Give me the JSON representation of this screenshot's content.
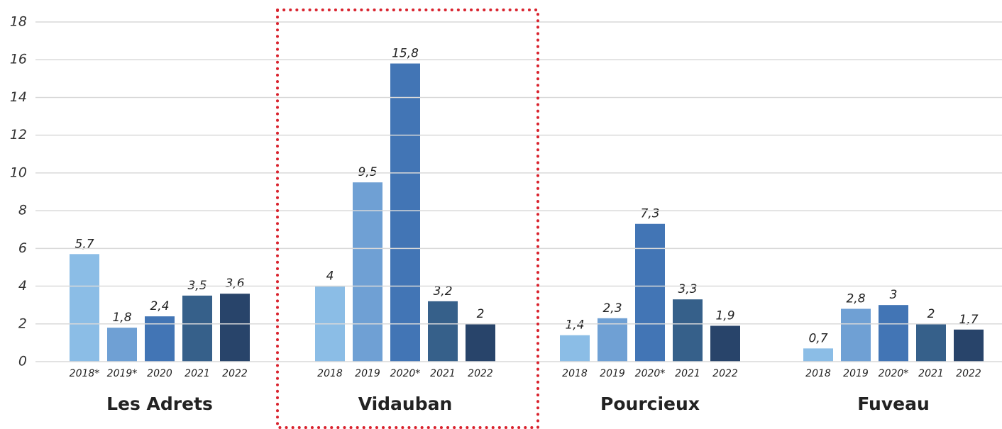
{
  "chart_data": {
    "type": "bar",
    "ylim": [
      0,
      18
    ],
    "yticks": [
      0,
      2,
      4,
      6,
      8,
      10,
      12,
      14,
      16,
      18
    ],
    "grid": true,
    "colors": [
      "#8bbde6",
      "#6fa0d4",
      "#4275b5",
      "#36608a",
      "#28446a"
    ],
    "groups": [
      {
        "name": "Les Adrets",
        "labels": [
          "2018*",
          "2019*",
          "2020",
          "2021",
          "2022"
        ],
        "values": [
          5.7,
          1.8,
          2.4,
          3.5,
          3.6
        ],
        "value_labels": [
          "5,7",
          "1,8",
          "2,4",
          "3,5",
          "3,6"
        ]
      },
      {
        "name": "Vidauban",
        "labels": [
          "2018",
          "2019",
          "2020*",
          "2021",
          "2022"
        ],
        "values": [
          4,
          9.5,
          15.8,
          3.2,
          2
        ],
        "value_labels": [
          "4",
          "9,5",
          "15,8",
          "3,2",
          "2"
        ]
      },
      {
        "name": "Pourcieux",
        "labels": [
          "2018",
          "2019",
          "2020*",
          "2021",
          "2022"
        ],
        "values": [
          1.4,
          2.3,
          7.3,
          3.3,
          1.9
        ],
        "value_labels": [
          "1,4",
          "2,3",
          "7,3",
          "3,3",
          "1,9"
        ]
      },
      {
        "name": "Fuveau",
        "labels": [
          "2018",
          "2019",
          "2020*",
          "2021",
          "2022"
        ],
        "values": [
          0.7,
          2.8,
          3,
          2,
          1.7
        ],
        "value_labels": [
          "0,7",
          "2,8",
          "3",
          "2",
          "1,7"
        ]
      }
    ]
  }
}
